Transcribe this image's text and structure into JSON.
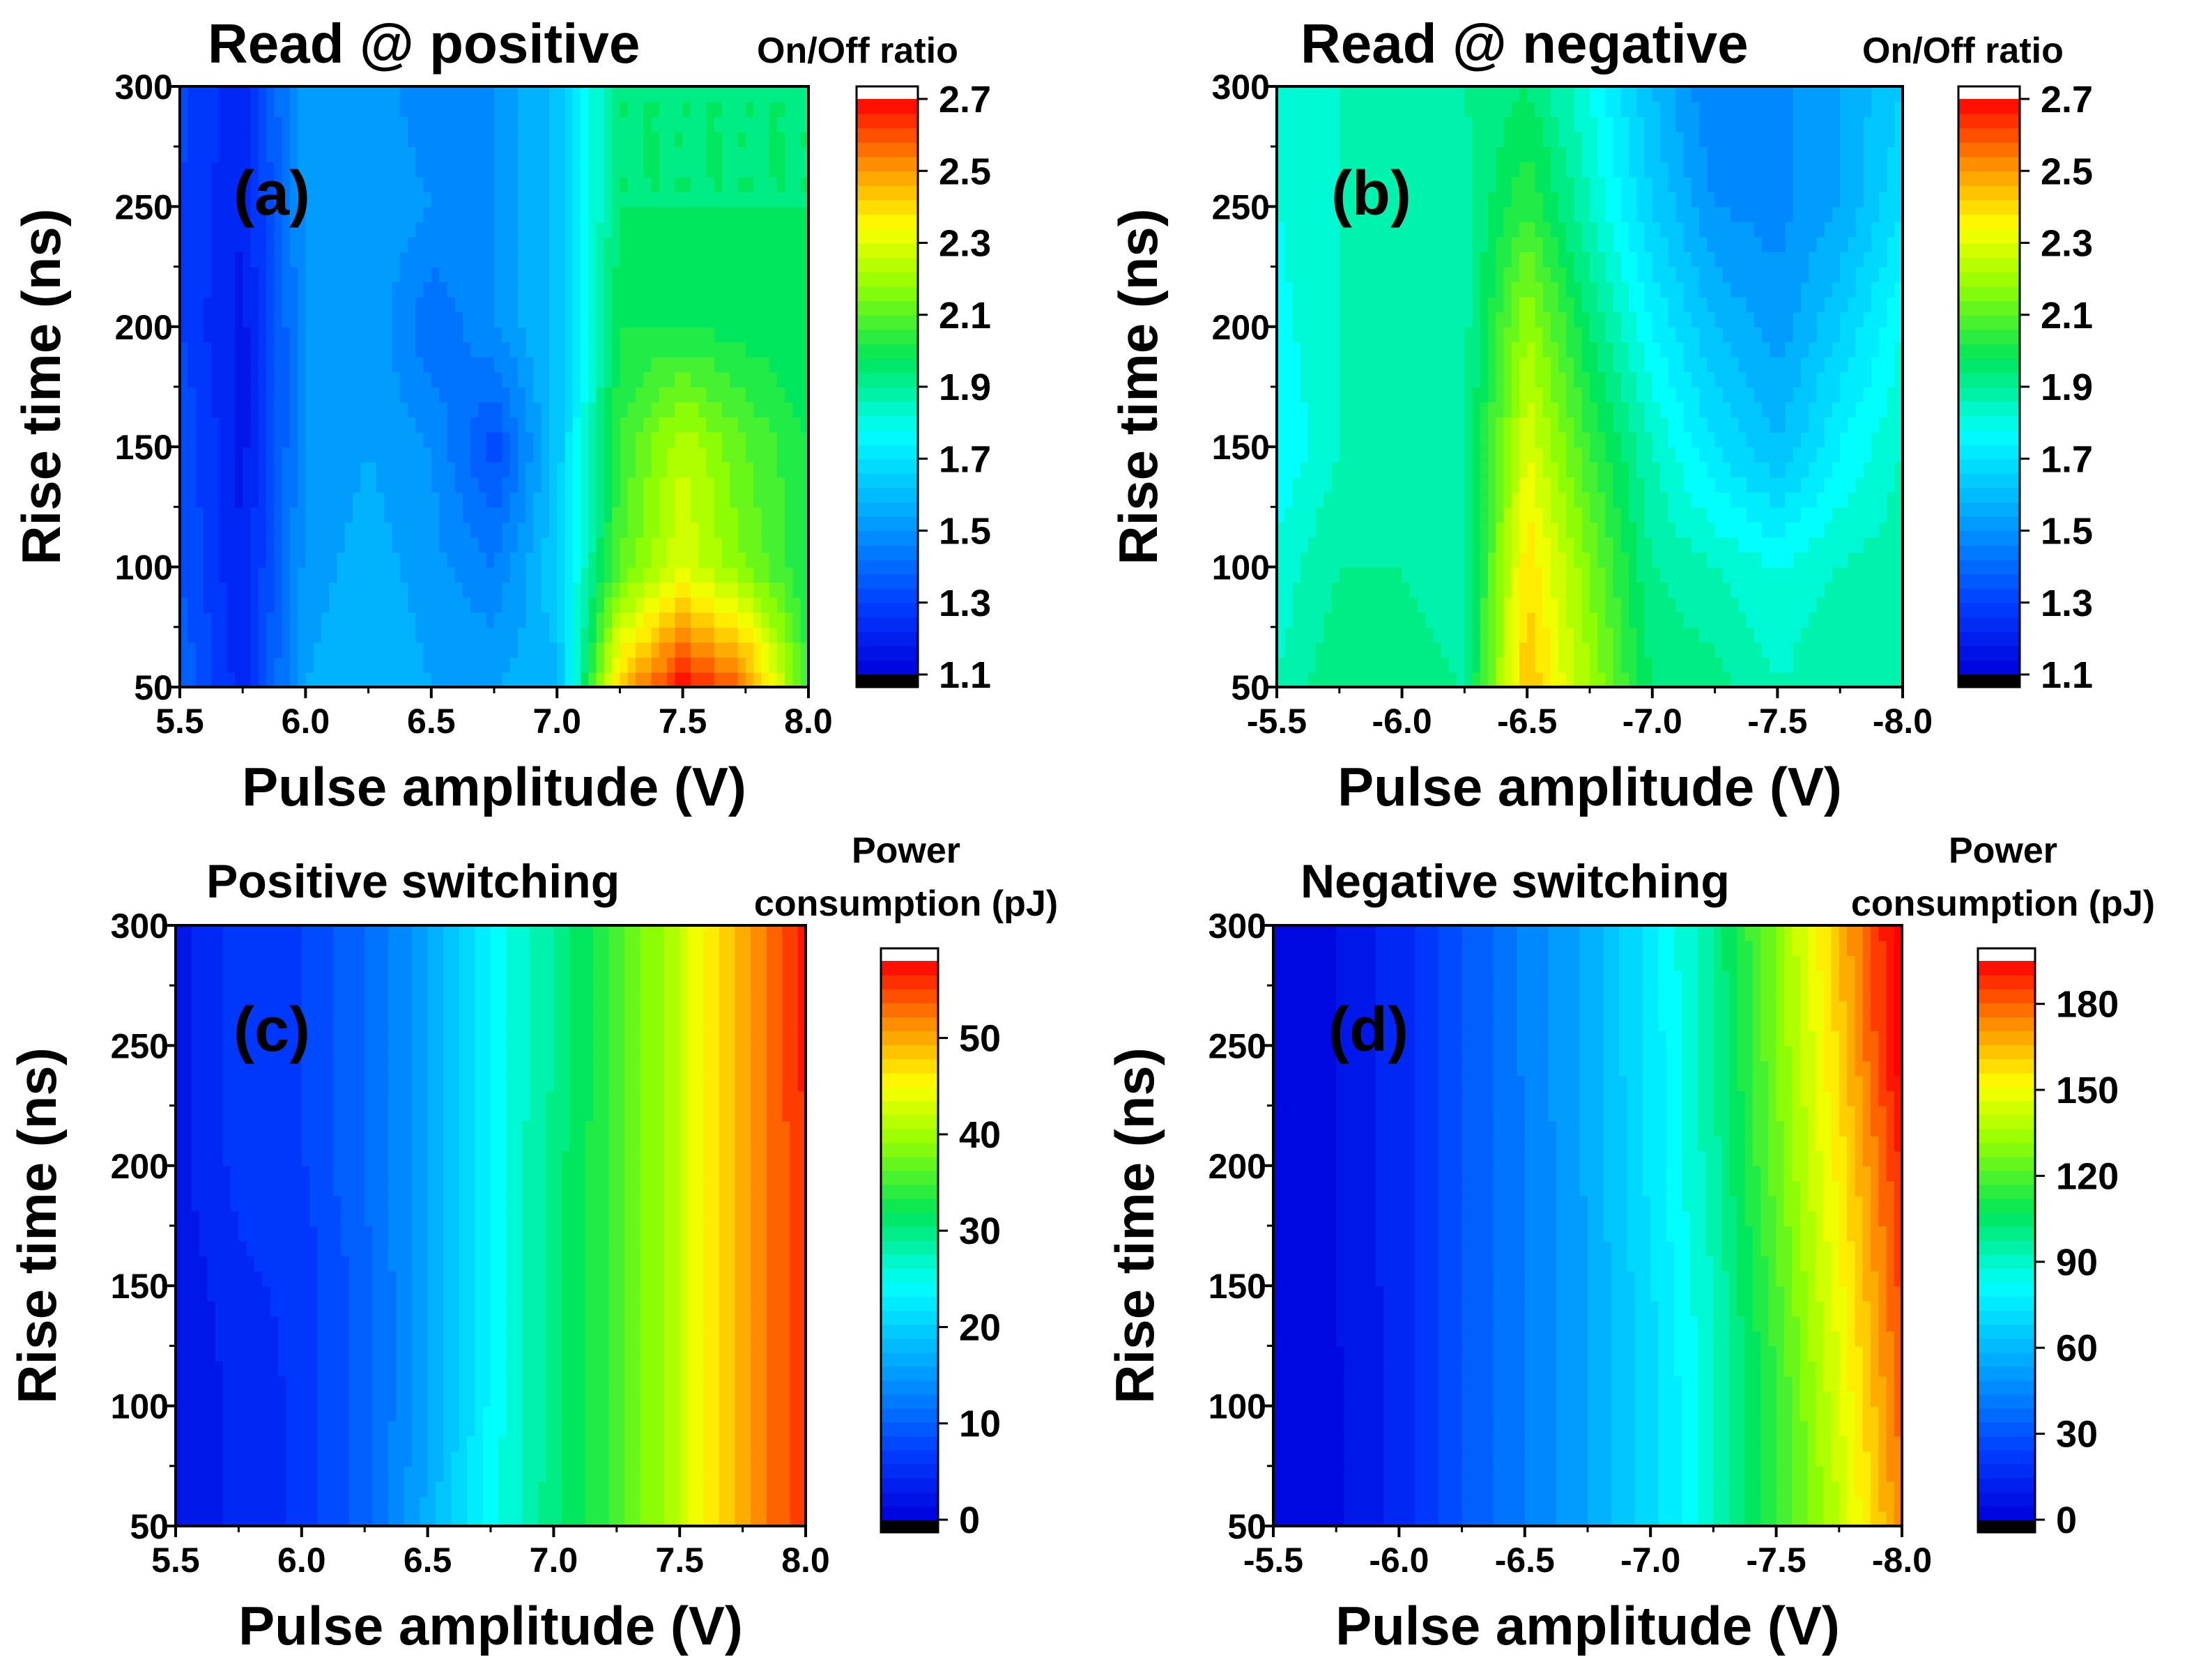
{
  "chart_data": [
    {
      "type": "heatmap",
      "panel": "(a)",
      "title": "Read @ positive",
      "xlabel": "Pulse amplitude (V)",
      "ylabel": "Rise time (ns)",
      "x": [
        5.5,
        5.75,
        6.0,
        6.25,
        6.5,
        6.75,
        7.0,
        7.25,
        7.5,
        7.75,
        8.0
      ],
      "y": [
        50,
        100,
        150,
        200,
        250,
        300
      ],
      "xticks": [
        "5.5",
        "6.0",
        "6.5",
        "7.0",
        "7.5",
        "8.0"
      ],
      "yticks": [
        "50",
        "100",
        "150",
        "200",
        "250",
        "300"
      ],
      "xlim": [
        5.5,
        8.0
      ],
      "ylim": [
        50,
        300
      ],
      "z": [
        [
          1.4,
          1.22,
          1.55,
          1.6,
          1.55,
          1.55,
          1.58,
          2.45,
          2.7,
          2.55,
          2.05
        ],
        [
          1.35,
          1.2,
          1.52,
          1.58,
          1.52,
          1.45,
          1.65,
          2.1,
          2.3,
          2.15,
          2.0
        ],
        [
          1.35,
          1.18,
          1.5,
          1.55,
          1.5,
          1.32,
          1.62,
          2.05,
          2.25,
          2.1,
          2.0
        ],
        [
          1.3,
          1.18,
          1.5,
          1.55,
          1.4,
          1.5,
          1.62,
          2.0,
          2.0,
          1.98,
          1.95
        ],
        [
          1.3,
          1.2,
          1.52,
          1.55,
          1.5,
          1.5,
          1.62,
          1.95,
          1.95,
          1.95,
          1.95
        ],
        [
          1.32,
          1.22,
          1.55,
          1.55,
          1.45,
          1.5,
          1.62,
          1.95,
          1.95,
          1.95,
          1.95
        ]
      ],
      "colorbar": {
        "title": "On/Off ratio",
        "min": 1.1,
        "max": 2.7,
        "ticks": [
          "1.1",
          "1.3",
          "1.5",
          "1.7",
          "1.9",
          "2.1",
          "2.3",
          "2.5",
          "2.7"
        ]
      }
    },
    {
      "type": "heatmap",
      "panel": "(b)",
      "title": "Read @ negative",
      "xlabel": "Pulse amplitude (V)",
      "ylabel": "Rise time (ns)",
      "x": [
        -5.5,
        -5.75,
        -6.0,
        -6.25,
        -6.5,
        -6.75,
        -7.0,
        -7.25,
        -7.5,
        -7.75,
        -8.0
      ],
      "y": [
        50,
        100,
        150,
        200,
        250,
        300
      ],
      "xticks": [
        "-5.5",
        "-6.0",
        "-6.5",
        "-7.0",
        "-7.5",
        "-8.0"
      ],
      "yticks": [
        "50",
        "100",
        "150",
        "200",
        "250",
        "300"
      ],
      "xlim": [
        -5.5,
        -8.0
      ],
      "ylim": [
        50,
        300
      ],
      "z": [
        [
          1.85,
          1.95,
          1.92,
          1.9,
          2.45,
          2.2,
          1.95,
          1.92,
          1.85,
          1.9,
          1.9
        ],
        [
          1.82,
          1.9,
          1.9,
          1.88,
          2.4,
          2.15,
          1.9,
          1.85,
          1.8,
          1.85,
          1.88
        ],
        [
          1.75,
          1.85,
          1.88,
          1.88,
          2.3,
          2.05,
          1.85,
          1.7,
          1.6,
          1.75,
          1.85
        ],
        [
          1.78,
          1.85,
          1.88,
          1.88,
          2.2,
          1.95,
          1.75,
          1.6,
          1.52,
          1.65,
          1.8
        ],
        [
          1.8,
          1.85,
          1.88,
          1.88,
          2.05,
          1.85,
          1.65,
          1.5,
          1.48,
          1.55,
          1.7
        ],
        [
          1.82,
          1.85,
          1.88,
          1.9,
          1.95,
          1.8,
          1.6,
          1.45,
          1.48,
          1.55,
          1.65
        ]
      ],
      "colorbar": {
        "title": "On/Off ratio",
        "min": 1.1,
        "max": 2.7,
        "ticks": [
          "1.1",
          "1.3",
          "1.5",
          "1.7",
          "1.9",
          "2.1",
          "2.3",
          "2.5",
          "2.7"
        ]
      }
    },
    {
      "type": "heatmap",
      "panel": "(c)",
      "title": "Positive switching",
      "xlabel": "Pulse amplitude (V)",
      "ylabel": "Rise time (ns)",
      "x": [
        5.5,
        5.75,
        6.0,
        6.25,
        6.5,
        6.75,
        7.0,
        7.25,
        7.5,
        7.75,
        8.0
      ],
      "y": [
        50,
        100,
        150,
        200,
        250,
        300
      ],
      "xticks": [
        "5.5",
        "6.0",
        "6.5",
        "7.0",
        "7.5",
        "8.0"
      ],
      "yticks": [
        "50",
        "100",
        "150",
        "200",
        "250",
        "300"
      ],
      "xlim": [
        5.5,
        8.0
      ],
      "ylim": [
        50,
        300
      ],
      "z": [
        [
          2,
          4,
          6,
          10,
          17,
          25,
          30,
          35,
          42,
          50,
          56
        ],
        [
          2,
          4,
          6,
          10,
          16,
          24,
          30,
          35,
          42,
          50,
          56
        ],
        [
          2,
          5,
          6,
          10,
          16,
          24,
          30,
          35,
          42,
          50,
          56
        ],
        [
          3,
          6,
          7,
          11,
          16,
          24,
          30,
          35,
          42,
          50,
          56
        ],
        [
          3,
          6,
          7,
          11,
          16,
          24,
          29,
          35,
          42,
          50,
          57
        ],
        [
          3,
          6,
          7,
          11,
          16,
          24,
          29,
          35,
          42,
          50,
          57
        ]
      ],
      "colorbar": {
        "title": "Power consumption (pJ)",
        "title_lines": [
          "Power",
          "consumption (pJ)"
        ],
        "min": 0,
        "max": 58,
        "ticks": [
          "0",
          "10",
          "20",
          "30",
          "40",
          "50"
        ]
      }
    },
    {
      "type": "heatmap",
      "panel": "(d)",
      "title": "Negative switching",
      "xlabel": "Pulse amplitude (V)",
      "ylabel": "Rise time (ns)",
      "x": [
        -5.5,
        -5.75,
        -6.0,
        -6.25,
        -6.5,
        -6.75,
        -7.0,
        -7.25,
        -7.5,
        -7.75,
        -8.0
      ],
      "y": [
        50,
        100,
        150,
        200,
        250,
        300
      ],
      "xticks": [
        "-5.5",
        "-6.0",
        "-6.5",
        "-7.0",
        "-7.5",
        "-8.0"
      ],
      "yticks": [
        "50",
        "100",
        "150",
        "200",
        "250",
        "300"
      ],
      "xlim": [
        -5.5,
        -8.0
      ],
      "ylim": [
        50,
        300
      ],
      "z": [
        [
          3,
          5,
          15,
          30,
          42,
          55,
          70,
          90,
          115,
          140,
          175
        ],
        [
          3,
          5,
          15,
          30,
          42,
          55,
          70,
          90,
          115,
          145,
          180
        ],
        [
          3,
          6,
          15,
          30,
          42,
          55,
          72,
          92,
          120,
          150,
          185
        ],
        [
          3,
          6,
          15,
          30,
          42,
          56,
          75,
          95,
          125,
          155,
          190
        ],
        [
          3,
          6,
          15,
          30,
          44,
          57,
          75,
          97,
          128,
          160,
          200
        ],
        [
          3,
          6,
          15,
          30,
          44,
          57,
          76,
          98,
          130,
          165,
          200
        ]
      ],
      "colorbar": {
        "title": "Power consumption (pJ)",
        "title_lines": [
          "Power",
          "consumption (pJ)"
        ],
        "min": 0,
        "max": 195,
        "ticks": [
          "0",
          "30",
          "60",
          "90",
          "120",
          "150",
          "180"
        ]
      }
    }
  ]
}
